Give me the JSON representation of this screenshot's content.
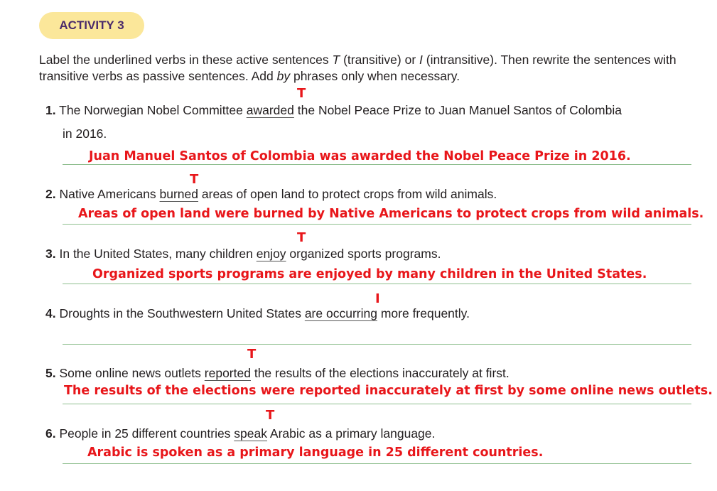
{
  "activity_label": "ACTIVITY 3",
  "instructions": {
    "part1": "Label the underlined verbs in these active sentences ",
    "t": "T",
    "part2": " (transitive) or ",
    "i": "I",
    "part3": " (intransitive). Then rewrite the sentences with transitive verbs as passive sentences. Add ",
    "by": "by",
    "part4": " phrases only when necessary."
  },
  "items": [
    {
      "num": "1.",
      "before": "The Norwegian Nobel Committee ",
      "verb": "awarded",
      "after": " the Nobel Peace Prize to Juan Manuel Santos of Colombia",
      "continuation": "in 2016.",
      "label": "T",
      "answer": "Juan Manuel Santos of Colombia was awarded the Nobel Peace Prize in 2016."
    },
    {
      "num": "2.",
      "before": "Native Americans ",
      "verb": "burned",
      "after": " areas of open land to protect crops from wild animals.",
      "label": "T",
      "answer": "Areas of open land were burned by Native Americans to protect crops from wild animals."
    },
    {
      "num": "3.",
      "before": "In the United States, many children ",
      "verb": "enjoy",
      "after": " organized sports programs.",
      "label": "T",
      "answer": "Organized sports programs are enjoyed by many children in the United States."
    },
    {
      "num": "4.",
      "before": "Droughts in the Southwestern United States ",
      "verb": "are occurring",
      "after": " more frequently.",
      "label": "I",
      "answer": ""
    },
    {
      "num": "5.",
      "before": "Some online news outlets ",
      "verb": "reported",
      "after": " the results of the elections inaccurately at first.",
      "label": "T",
      "answer": "The results of the elections were reported inaccurately at first by some online news outlets."
    },
    {
      "num": "6.",
      "before": "People in 25 different countries ",
      "verb": "speak",
      "after": " Arabic as a primary language.",
      "label": "T",
      "answer": "Arabic is spoken as a primary language in 25 different countries."
    }
  ]
}
